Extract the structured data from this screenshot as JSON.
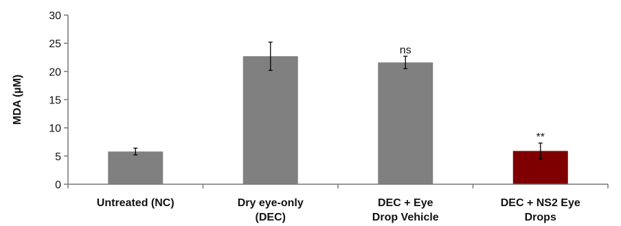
{
  "chart_data": {
    "type": "bar",
    "title": "",
    "xlabel": "",
    "ylabel": "MDA (µM)",
    "ylim": [
      0,
      30
    ],
    "yticks": [
      0,
      5,
      10,
      15,
      20,
      25,
      30
    ],
    "grid": false,
    "legend": "none",
    "categories": [
      [
        "Untreated (NC)"
      ],
      [
        "Dry eye-only",
        "(DEC)"
      ],
      [
        "DEC + Eye",
        "Drop Vehicle"
      ],
      [
        "DEC + NS2 Eye",
        "Drops"
      ]
    ],
    "values": [
      5.8,
      22.7,
      21.6,
      5.9
    ],
    "errors": [
      0.6,
      2.5,
      1.1,
      1.4
    ],
    "annotations": [
      "",
      "",
      "ns",
      "**"
    ],
    "colors": [
      "#808080",
      "#808080",
      "#808080",
      "#7f0000"
    ]
  }
}
